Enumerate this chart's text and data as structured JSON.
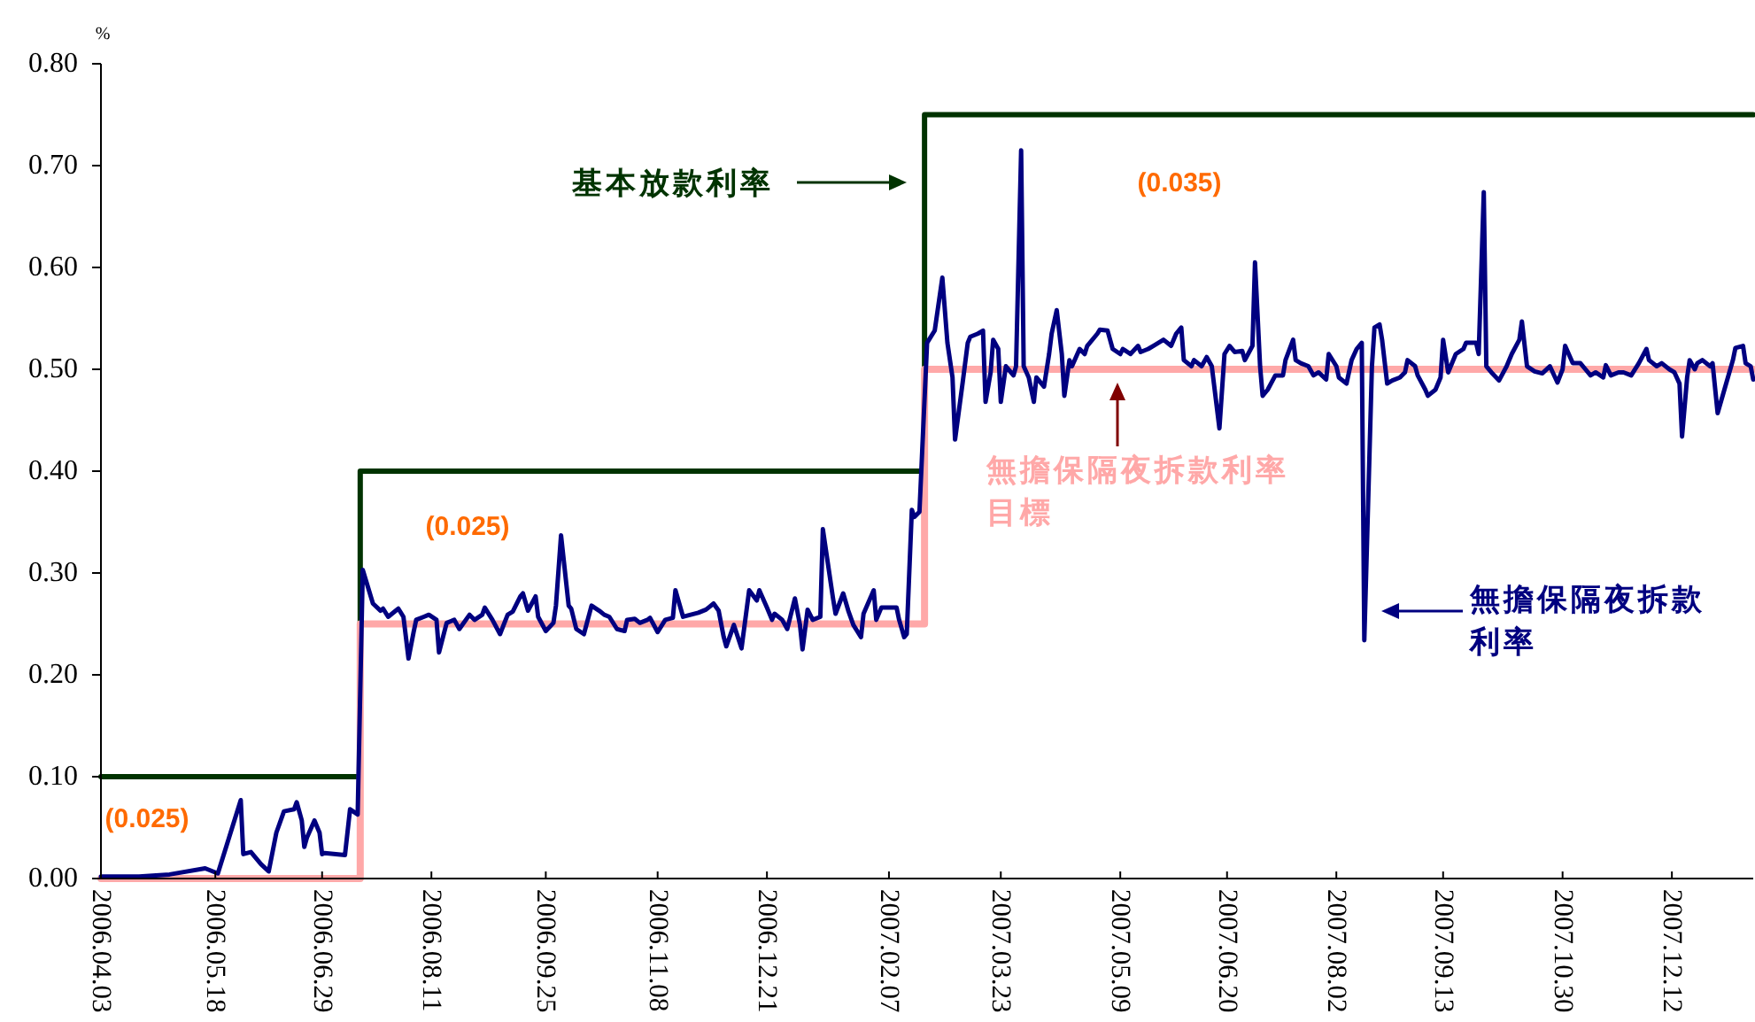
{
  "chart_data": {
    "type": "line",
    "ylabel": "%",
    "xlim": [
      "2006-04-03",
      "2008-01-13"
    ],
    "xticks": [
      {
        "value": "2006-04-03",
        "label": "2006.04.03"
      },
      {
        "value": "2006-05-18",
        "label": "2006.05.18"
      },
      {
        "value": "2006-06-29",
        "label": "2006.06.29"
      },
      {
        "value": "2006-08-11",
        "label": "2006.08.11"
      },
      {
        "value": "2006-09-25",
        "label": "2006.09.25"
      },
      {
        "value": "2006-11-08",
        "label": "2006.11.08"
      },
      {
        "value": "2006-12-21",
        "label": "2006.12.21"
      },
      {
        "value": "2007-02-07",
        "label": "2007.02.07"
      },
      {
        "value": "2007-03-23",
        "label": "2007.03.23"
      },
      {
        "value": "2007-05-09",
        "label": "2007.05.09"
      },
      {
        "value": "2007-06-20",
        "label": "2007.06.20"
      },
      {
        "value": "2007-08-02",
        "label": "2007.08.02"
      },
      {
        "value": "2007-09-13",
        "label": "2007.09.13"
      },
      {
        "value": "2007-10-30",
        "label": "2007.10.30"
      },
      {
        "value": "2007-12-12",
        "label": "2007.12.12"
      }
    ],
    "ylim": [
      0,
      0.8
    ],
    "yticks": [
      {
        "value": 0,
        "label": "0.00"
      },
      {
        "value": 0.1,
        "label": "0.10"
      },
      {
        "value": 0.2,
        "label": "0.20"
      },
      {
        "value": 0.3,
        "label": "0.30"
      },
      {
        "value": 0.4,
        "label": "0.40"
      },
      {
        "value": 0.5,
        "label": "0.50"
      },
      {
        "value": 0.6,
        "label": "0.60"
      },
      {
        "value": 0.7,
        "label": "0.70"
      },
      {
        "value": 0.8,
        "label": "0.80"
      }
    ],
    "series": [
      {
        "name": "基本放款利率",
        "type": "step",
        "color": "#003300",
        "x": [
          "2006-04-03",
          "2006-07-14",
          "2007-02-21",
          "2008-01-13"
        ],
        "values": [
          0.1,
          0.4,
          0.75,
          0.75
        ]
      },
      {
        "name": "無擔保隔夜拆款利率目標",
        "type": "step",
        "color": "#ffa8a8",
        "x": [
          "2006-04-03",
          "2006-07-14",
          "2007-02-21",
          "2008-01-13"
        ],
        "values": [
          0,
          0.25,
          0.5,
          0.5
        ]
      },
      {
        "name": "無擔保隔夜拆款利率",
        "color": "#000080",
        "x": [
          "2006-04-03",
          "2006-04-18",
          "2006-04-30",
          "2006-05-14",
          "2006-05-19",
          "2006-05-24",
          "2006-05-28",
          "2006-05-29",
          "2006-06-01",
          "2006-06-05",
          "2006-06-08",
          "2006-06-11",
          "2006-06-14",
          "2006-06-18",
          "2006-06-19",
          "2006-06-21",
          "2006-06-22",
          "2006-06-23",
          "2006-06-26",
          "2006-06-28",
          "2006-06-29",
          "2006-06-30",
          "2006-07-08",
          "2006-07-10",
          "2006-07-13",
          "2006-07-15",
          "2006-07-19",
          "2006-07-22",
          "2006-07-23",
          "2006-07-25",
          "2006-07-28",
          "2006-07-29",
          "2006-07-31",
          "2006-08-02",
          "2006-08-04",
          "2006-08-05",
          "2006-08-08",
          "2006-08-10",
          "2006-08-13",
          "2006-08-14",
          "2006-08-17",
          "2006-08-20",
          "2006-08-22",
          "2006-08-26",
          "2006-08-28",
          "2006-08-31",
          "2006-09-01",
          "2006-09-04",
          "2006-09-07",
          "2006-09-10",
          "2006-09-12",
          "2006-09-15",
          "2006-09-16",
          "2006-09-18",
          "2006-09-21",
          "2006-09-22",
          "2006-09-25",
          "2006-09-28",
          "2006-09-29",
          "2006-10-01",
          "2006-10-04",
          "2006-10-05",
          "2006-10-07",
          "2006-10-10",
          "2006-10-13",
          "2006-10-16",
          "2006-10-18",
          "2006-10-20",
          "2006-10-23",
          "2006-10-26",
          "2006-10-27",
          "2006-10-30",
          "2006-11-01",
          "2006-11-04",
          "2006-11-05",
          "2006-11-08",
          "2006-11-11",
          "2006-11-14",
          "2006-11-15",
          "2006-11-18",
          "2006-11-21",
          "2006-11-24",
          "2006-11-27",
          "2006-11-28",
          "2006-11-30",
          "2006-12-02",
          "2006-12-04",
          "2006-12-05",
          "2006-12-08",
          "2006-12-11",
          "2006-12-14",
          "2006-12-17",
          "2006-12-18",
          "2006-12-21",
          "2006-12-23",
          "2006-12-24",
          "2006-12-27",
          "2006-12-29",
          "2007-01-01",
          "2007-01-03",
          "2007-01-04",
          "2007-01-06",
          "2007-01-08",
          "2007-01-11",
          "2007-01-12",
          "2007-01-16",
          "2007-01-17",
          "2007-01-20",
          "2007-01-22",
          "2007-01-24",
          "2007-01-27",
          "2007-01-28",
          "2007-02-01",
          "2007-02-02",
          "2007-02-04",
          "2007-02-07",
          "2007-02-10",
          "2007-02-11",
          "2007-02-13",
          "2007-02-14",
          "2007-02-16",
          "2007-02-17",
          "2007-02-19",
          "2007-02-22",
          "2007-02-25",
          "2007-02-28",
          "2007-03-02",
          "2007-03-04",
          "2007-03-05",
          "2007-03-08",
          "2007-03-10",
          "2007-03-11",
          "2007-03-14",
          "2007-03-16",
          "2007-03-17",
          "2007-03-19",
          "2007-03-20",
          "2007-03-22",
          "2007-03-23",
          "2007-03-25",
          "2007-03-28",
          "2007-03-29",
          "2007-03-31",
          "2007-04-01",
          "2007-04-03",
          "2007-04-05",
          "2007-04-06",
          "2007-04-09",
          "2007-04-11",
          "2007-04-12",
          "2007-04-14",
          "2007-04-16",
          "2007-04-17",
          "2007-04-19",
          "2007-04-20",
          "2007-04-23",
          "2007-04-25",
          "2007-04-26",
          "2007-04-30",
          "2007-05-01",
          "2007-05-04",
          "2007-05-06",
          "2007-05-09",
          "2007-05-10",
          "2007-05-13",
          "2007-05-16",
          "2007-05-17",
          "2007-05-20",
          "2007-05-22",
          "2007-05-24",
          "2007-05-26",
          "2007-05-29",
          "2007-05-31",
          "2007-06-02",
          "2007-06-03",
          "2007-06-06",
          "2007-06-07",
          "2007-06-10",
          "2007-06-12",
          "2007-06-14",
          "2007-06-17",
          "2007-06-19",
          "2007-06-21",
          "2007-06-23",
          "2007-06-26",
          "2007-06-27",
          "2007-06-30",
          "2007-07-01",
          "2007-07-03",
          "2007-07-04",
          "2007-07-06",
          "2007-07-09",
          "2007-07-12",
          "2007-07-13",
          "2007-07-16",
          "2007-07-17",
          "2007-07-19",
          "2007-07-22",
          "2007-07-24",
          "2007-07-26",
          "2007-07-29",
          "2007-07-30",
          "2007-08-02",
          "2007-08-03",
          "2007-08-06",
          "2007-08-08",
          "2007-08-10",
          "2007-08-12",
          "2007-08-13",
          "2007-08-16",
          "2007-08-17",
          "2007-08-19",
          "2007-08-20",
          "2007-08-22",
          "2007-08-24",
          "2007-08-27",
          "2007-08-29",
          "2007-08-30",
          "2007-09-02",
          "2007-09-03",
          "2007-09-06",
          "2007-09-07",
          "2007-09-10",
          "2007-09-12",
          "2007-09-13",
          "2007-09-15",
          "2007-09-18",
          "2007-09-21",
          "2007-09-22",
          "2007-09-26",
          "2007-09-27",
          "2007-09-29",
          "2007-09-30",
          "2007-10-02",
          "2007-10-05",
          "2007-10-08",
          "2007-10-10",
          "2007-10-13",
          "2007-10-14",
          "2007-10-16",
          "2007-10-19",
          "2007-10-22",
          "2007-10-25",
          "2007-10-28",
          "2007-10-30",
          "2007-10-31",
          "2007-11-03",
          "2007-11-06",
          "2007-11-08",
          "2007-11-10",
          "2007-11-12",
          "2007-11-15",
          "2007-11-16",
          "2007-11-18",
          "2007-11-21",
          "2007-11-23",
          "2007-11-26",
          "2007-11-29",
          "2007-12-02",
          "2007-12-03",
          "2007-12-06",
          "2007-12-08",
          "2007-12-11",
          "2007-12-13",
          "2007-12-15",
          "2007-12-16",
          "2007-12-18",
          "2007-12-19",
          "2007-12-21",
          "2007-12-22",
          "2007-12-24",
          "2007-12-27",
          "2007-12-28",
          "2007-12-30",
          "2008-01-02",
          "2008-01-05",
          "2008-01-06",
          "2008-01-09",
          "2008-01-10",
          "2008-01-12",
          "2008-01-13"
        ],
        "values": [
          0.002,
          0.002,
          0.004,
          0.01,
          0.005,
          0.045,
          0.077,
          0.024,
          0.026,
          0.014,
          0.007,
          0.045,
          0.066,
          0.068,
          0.075,
          0.057,
          0.031,
          0.04,
          0.057,
          0.045,
          0.024,
          0.025,
          0.023,
          0.068,
          0.063,
          0.303,
          0.27,
          0.263,
          0.265,
          0.257,
          0.263,
          0.265,
          0.257,
          0.216,
          0.242,
          0.254,
          0.257,
          0.259,
          0.254,
          0.222,
          0.251,
          0.254,
          0.245,
          0.259,
          0.254,
          0.259,
          0.266,
          0.254,
          0.24,
          0.259,
          0.262,
          0.277,
          0.28,
          0.263,
          0.277,
          0.257,
          0.243,
          0.251,
          0.268,
          0.337,
          0.268,
          0.265,
          0.245,
          0.24,
          0.268,
          0.263,
          0.259,
          0.257,
          0.245,
          0.243,
          0.254,
          0.255,
          0.251,
          0.254,
          0.256,
          0.242,
          0.254,
          0.256,
          0.283,
          0.257,
          0.259,
          0.261,
          0.264,
          0.266,
          0.27,
          0.263,
          0.237,
          0.228,
          0.249,
          0.226,
          0.283,
          0.273,
          0.283,
          0.266,
          0.254,
          0.26,
          0.254,
          0.245,
          0.275,
          0.249,
          0.225,
          0.264,
          0.254,
          0.257,
          0.343,
          0.275,
          0.26,
          0.28,
          0.263,
          0.249,
          0.237,
          0.26,
          0.283,
          0.254,
          0.266,
          0.266,
          0.266,
          0.254,
          0.237,
          0.24,
          0.362,
          0.355,
          0.36,
          0.526,
          0.538,
          0.59,
          0.526,
          0.492,
          0.431,
          0.487,
          0.526,
          0.532,
          0.535,
          0.538,
          0.468,
          0.497,
          0.529,
          0.52,
          0.468,
          0.503,
          0.494,
          0.503,
          0.715,
          0.503,
          0.492,
          0.468,
          0.492,
          0.483,
          0.515,
          0.535,
          0.558,
          0.515,
          0.474,
          0.509,
          0.503,
          0.52,
          0.515,
          0.523,
          0.535,
          0.539,
          0.538,
          0.52,
          0.515,
          0.52,
          0.515,
          0.523,
          0.517,
          0.52,
          0.523,
          0.526,
          0.529,
          0.523,
          0.535,
          0.541,
          0.509,
          0.503,
          0.509,
          0.503,
          0.512,
          0.503,
          0.442,
          0.515,
          0.523,
          0.517,
          0.518,
          0.509,
          0.523,
          0.605,
          0.503,
          0.474,
          0.48,
          0.494,
          0.494,
          0.509,
          0.529,
          0.509,
          0.506,
          0.503,
          0.494,
          0.497,
          0.49,
          0.515,
          0.503,
          0.492,
          0.486,
          0.509,
          0.52,
          0.526,
          0.234,
          0.503,
          0.541,
          0.544,
          0.529,
          0.486,
          0.489,
          0.492,
          0.497,
          0.509,
          0.503,
          0.494,
          0.48,
          0.474,
          0.48,
          0.492,
          0.529,
          0.497,
          0.515,
          0.52,
          0.526,
          0.526,
          0.515,
          0.674,
          0.503,
          0.497,
          0.489,
          0.503,
          0.515,
          0.529,
          0.547,
          0.503,
          0.498,
          0.496,
          0.503,
          0.487,
          0.5,
          0.523,
          0.506,
          0.506,
          0.5,
          0.494,
          0.497,
          0.492,
          0.504,
          0.494,
          0.497,
          0.497,
          0.494,
          0.506,
          0.52,
          0.509,
          0.503,
          0.506,
          0.5,
          0.497,
          0.486,
          0.434,
          0.492,
          0.509,
          0.5,
          0.506,
          0.509,
          0.503,
          0.506,
          0.457,
          0.483,
          0.509,
          0.521,
          0.523,
          0.506,
          0.503,
          0.49
        ]
      }
    ],
    "annotations": [
      "(0.025)",
      "(0.025)",
      "(0.035)"
    ]
  }
}
